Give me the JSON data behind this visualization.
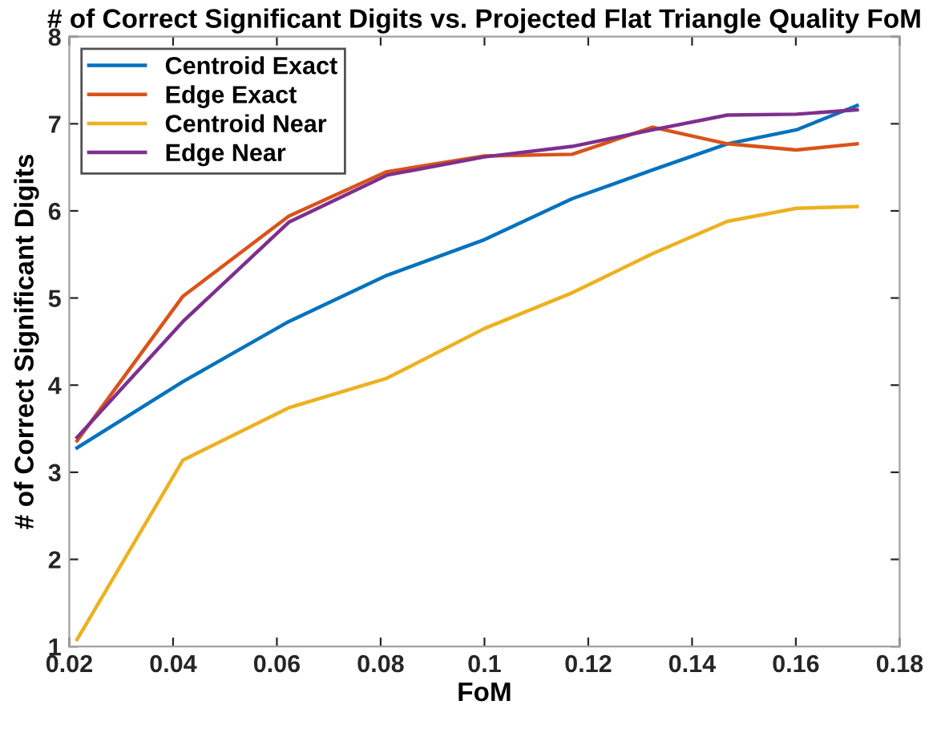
{
  "chart_data": {
    "type": "line",
    "title": "# of Correct Significant Digits vs. Projected Flat Triangle Quality FoM",
    "xlabel": "FoM",
    "ylabel": "# of Correct Significant Digits",
    "x": [
      0.0215,
      0.0419,
      0.0623,
      0.0812,
      0.1,
      0.1169,
      0.1324,
      0.1468,
      0.1601,
      0.1718
    ],
    "series": [
      {
        "name": "Centroid Exact",
        "color": "#0072bd",
        "values": [
          3.28,
          4.04,
          4.73,
          5.26,
          5.67,
          6.14,
          6.47,
          6.77,
          6.93,
          7.21
        ]
      },
      {
        "name": "Edge Exact",
        "color": "#d95319",
        "values": [
          3.36,
          5.02,
          5.94,
          6.45,
          6.63,
          6.65,
          6.96,
          6.77,
          6.7,
          6.77
        ]
      },
      {
        "name": "Centroid Near",
        "color": "#edb120",
        "values": [
          1.08,
          3.14,
          3.74,
          4.08,
          4.65,
          5.06,
          5.51,
          5.88,
          6.03,
          6.05
        ]
      },
      {
        "name": "Edge Near",
        "color": "#7e2f8e",
        "values": [
          3.4,
          4.73,
          5.87,
          6.41,
          6.62,
          6.74,
          6.93,
          7.1,
          7.11,
          7.16
        ]
      }
    ],
    "xlim": [
      0.02,
      0.18
    ],
    "xticks": [
      0.02,
      0.04,
      0.06,
      0.08,
      0.1,
      0.12,
      0.14,
      0.16,
      0.18
    ],
    "ylim": [
      1,
      8
    ],
    "yticks": [
      1,
      2,
      3,
      4,
      5,
      6,
      7,
      8
    ],
    "legend": "top left",
    "grid": false
  }
}
